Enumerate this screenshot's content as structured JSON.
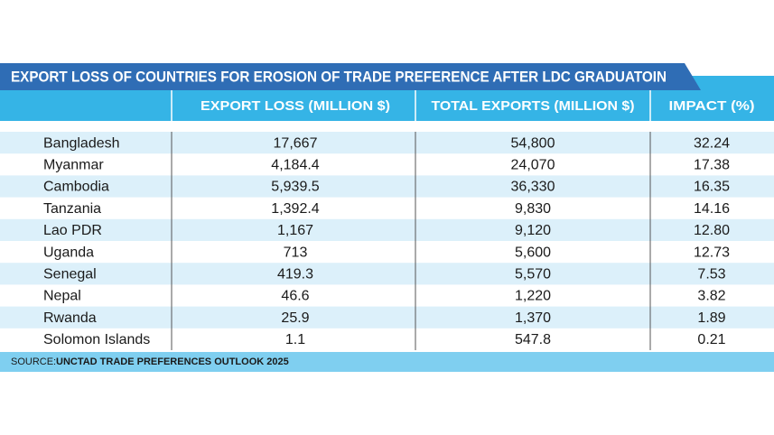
{
  "title": "EXPORT LOSS OF COUNTRIES FOR EROSION OF TRADE PREFERENCE AFTER LDC GRADUATOIN",
  "table": {
    "columns": [
      "",
      "EXPORT LOSS (MILLION $)",
      "TOTAL EXPORTS (MILLION $)",
      "IMPACT (%)"
    ],
    "rows": [
      [
        "Bangladesh",
        "17,667",
        "54,800",
        "32.24"
      ],
      [
        "Myanmar",
        "4,184.4",
        "24,070",
        "17.38"
      ],
      [
        "Cambodia",
        "5,939.5",
        "36,330",
        "16.35"
      ],
      [
        "Tanzania",
        "1,392.4",
        "9,830",
        "14.16"
      ],
      [
        "Lao PDR",
        "1,167",
        "9,120",
        "12.80"
      ],
      [
        "Uganda",
        "713",
        "5,600",
        "12.73"
      ],
      [
        "Senegal",
        "419.3",
        "5,570",
        "7.53"
      ],
      [
        "Nepal",
        "46.6",
        "1,220",
        "3.82"
      ],
      [
        "Rwanda",
        "25.9",
        "1,370",
        "1.89"
      ],
      [
        "Solomon Islands",
        "1.1",
        "547.8",
        "0.21"
      ]
    ]
  },
  "source": {
    "label": "SOURCE:",
    "text": "UNCTAD TRADE PREFERENCES OUTLOOK 2025"
  }
}
